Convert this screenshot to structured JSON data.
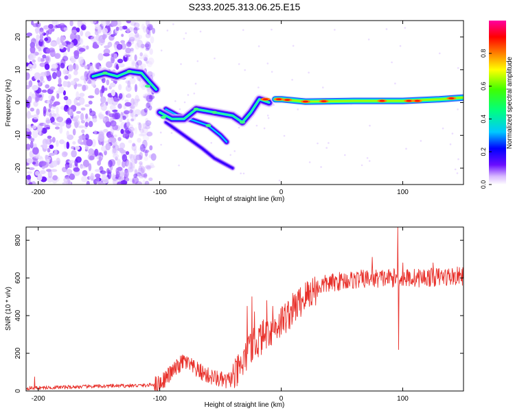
{
  "title": "S233.2025.313.06.25.E15",
  "colors": {
    "axis": "#000000",
    "snr_line": "#e8302a",
    "background": "#ffffff"
  },
  "chart_data": [
    {
      "id": "spectrogram",
      "type": "heatmap",
      "title": "S233.2025.313.06.25.E15",
      "xlabel": "Height of straight line (km)",
      "ylabel": "Frequency (Hz)",
      "xlim": [
        -210,
        150
      ],
      "ylim": [
        -25,
        25
      ],
      "xticks": [
        -200,
        -100,
        0,
        100
      ],
      "xtick_labels": [
        "-200",
        "-100",
        "0",
        "100"
      ],
      "yticks": [
        -20,
        -10,
        0,
        10,
        20
      ],
      "ytick_labels": [
        "-20",
        "-10",
        "0",
        "10",
        "20"
      ],
      "colorbar": {
        "label": "Normalized spectral amplitude",
        "range": [
          0,
          1
        ],
        "ticks": [
          0.0,
          0.2,
          0.4,
          0.6,
          0.8
        ],
        "tick_labels": [
          "0.0",
          "0.2",
          "0.4",
          "0.6",
          "0.8"
        ]
      },
      "features": {
        "noise_region_x": [
          -210,
          -105
        ],
        "upper_branch": [
          [
            -155,
            8
          ],
          [
            -145,
            9
          ],
          [
            -135,
            8
          ],
          [
            -125,
            9.5
          ],
          [
            -115,
            9
          ],
          [
            -108,
            6
          ],
          [
            -103,
            4
          ]
        ],
        "lower_branch_1": [
          [
            -100,
            -3
          ],
          [
            -90,
            -5
          ],
          [
            -80,
            -5
          ],
          [
            -70,
            -2
          ],
          [
            -55,
            -3
          ],
          [
            -40,
            -4
          ],
          [
            -32,
            -6
          ],
          [
            -25,
            -3
          ],
          [
            -18,
            1
          ],
          [
            -10,
            0
          ]
        ],
        "lower_branch_2": [
          [
            -95,
            -2
          ],
          [
            -85,
            -4
          ],
          [
            -72,
            -5.5
          ],
          [
            -60,
            -7
          ],
          [
            -50,
            -10
          ],
          [
            -45,
            -12
          ]
        ],
        "lower_branch_3": [
          [
            -95,
            -6
          ],
          [
            -80,
            -10
          ],
          [
            -65,
            -14
          ],
          [
            -55,
            -17
          ],
          [
            -40,
            -20
          ]
        ],
        "main_line": [
          [
            -5,
            1
          ],
          [
            0,
            1
          ],
          [
            20,
            0.3
          ],
          [
            60,
            0.5
          ],
          [
            100,
            0.5
          ],
          [
            130,
            1
          ],
          [
            150,
            1.5
          ]
        ]
      }
    },
    {
      "id": "snr",
      "type": "line",
      "xlabel": "Height of straight line (km)",
      "ylabel": "SNR (10 * v/v)",
      "xlim": [
        -210,
        150
      ],
      "ylim": [
        0,
        870
      ],
      "xticks": [
        -200,
        -100,
        0,
        100
      ],
      "xtick_labels": [
        "-200",
        "-100",
        "0",
        "100"
      ],
      "yticks": [
        0,
        200,
        400,
        600,
        800
      ],
      "ytick_labels": [
        "0",
        "200",
        "400",
        "600",
        "800"
      ],
      "anchors": [
        [
          -210,
          15
        ],
        [
          -150,
          25
        ],
        [
          -110,
          30
        ],
        [
          -100,
          40
        ],
        [
          -90,
          100
        ],
        [
          -80,
          160
        ],
        [
          -72,
          120
        ],
        [
          -60,
          80
        ],
        [
          -45,
          50
        ],
        [
          -38,
          80
        ],
        [
          -32,
          140
        ],
        [
          -25,
          230
        ],
        [
          -15,
          290
        ],
        [
          -5,
          340
        ],
        [
          5,
          400
        ],
        [
          15,
          470
        ],
        [
          25,
          530
        ],
        [
          35,
          565
        ],
        [
          50,
          585
        ],
        [
          70,
          595
        ],
        [
          90,
          600
        ],
        [
          110,
          600
        ],
        [
          130,
          605
        ],
        [
          150,
          610
        ]
      ],
      "spikes": [
        [
          -28,
          450
        ],
        [
          -24,
          500
        ],
        [
          -22,
          420
        ],
        [
          -12,
          480
        ],
        [
          -7,
          450
        ],
        [
          75,
          710
        ],
        [
          96,
          870
        ],
        [
          96.5,
          220
        ],
        [
          100,
          680
        ],
        [
          125,
          680
        ],
        [
          -203,
          75
        ]
      ]
    }
  ]
}
